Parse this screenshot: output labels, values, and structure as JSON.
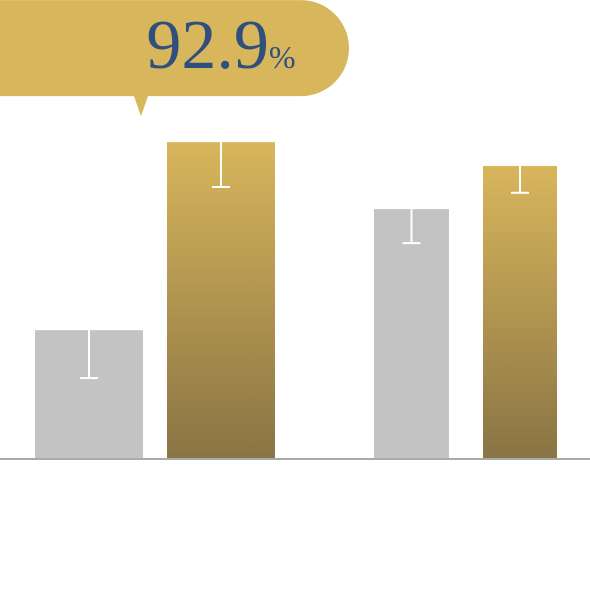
{
  "chart_data": {
    "type": "bar",
    "categories": [
      null,
      null
    ],
    "series": [
      {
        "color": "#c3c3c3",
        "values": [
          37.6,
          73.2
        ],
        "errors": [
          14.1,
          10.0
        ]
      },
      {
        "color": "#d8b65c",
        "values": [
          92.9,
          85.9
        ],
        "errors": [
          13.2,
          7.9
        ],
        "value_labels": [
          "92.9%",
          null
        ]
      }
    ]
  }
}
